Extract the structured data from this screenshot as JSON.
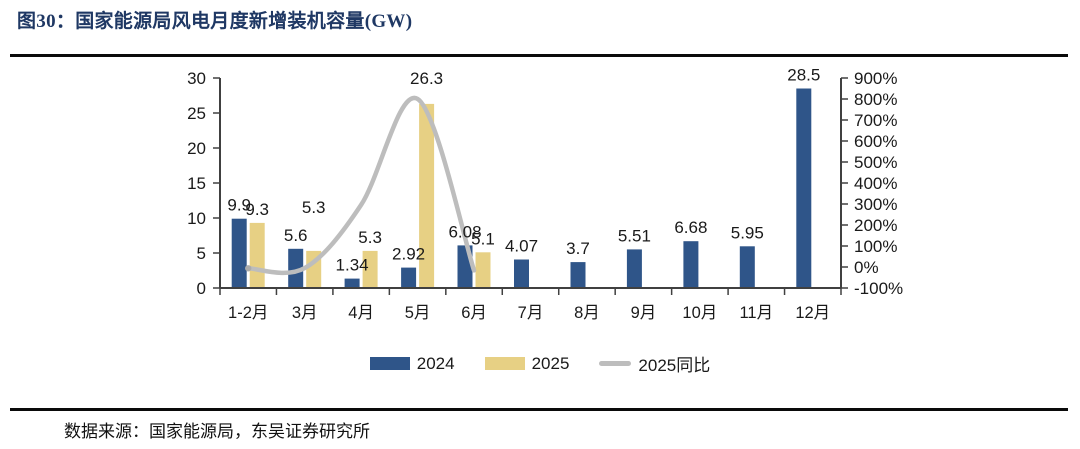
{
  "header": {
    "title": "图30：国家能源局风电月度新增装机容量(GW)"
  },
  "footer": {
    "source": "数据来源：国家能源局，东吴证券研究所"
  },
  "colors": {
    "title_navy": "#1F3864",
    "bar_2024_blue": "#2F5589",
    "bar_2025_yellow": "#E7D084",
    "yoy_line_gray": "#BDBDBD",
    "axis": "#404040",
    "text": "#1a1a1a"
  },
  "chart_data": {
    "type": "bar",
    "subtype": "bar+line combo, dual axis",
    "title": "国家能源局风电月度新增装机容量(GW)",
    "categories": [
      "1-2月",
      "3月",
      "4月",
      "5月",
      "6月",
      "7月",
      "8月",
      "9月",
      "10月",
      "11月",
      "12月"
    ],
    "series": [
      {
        "name": "2024",
        "type": "bar",
        "axis": "left",
        "color": "#2F5589",
        "values": [
          9.9,
          5.6,
          1.34,
          2.92,
          6.08,
          4.07,
          3.7,
          5.51,
          6.68,
          5.95,
          28.5
        ],
        "labels": [
          "9.9",
          "5.6",
          "1.34",
          "2.92",
          "6.08",
          "4.07",
          "3.7",
          "5.51",
          "6.68",
          "5.95",
          "28.5"
        ]
      },
      {
        "name": "2025",
        "type": "bar",
        "axis": "left",
        "color": "#E7D084",
        "values": [
          9.3,
          5.3,
          5.3,
          26.3,
          5.1,
          null,
          null,
          null,
          null,
          null,
          null
        ],
        "labels": [
          "9.3",
          "5.3",
          "5.3",
          "26.3",
          "5.1",
          null,
          null,
          null,
          null,
          null,
          null
        ]
      },
      {
        "name": "2025同比",
        "type": "line",
        "axis": "right",
        "color": "#BDBDBD",
        "values": [
          -6.1,
          -5.4,
          295.5,
          800.7,
          -16.1,
          null,
          null,
          null,
          null,
          null,
          null
        ]
      }
    ],
    "left_axis": {
      "min": 0,
      "max": 30,
      "step": 5
    },
    "right_axis": {
      "min": -100,
      "max": 900,
      "step": 100,
      "suffix": "%"
    },
    "legend_position": "bottom",
    "grid": false
  }
}
